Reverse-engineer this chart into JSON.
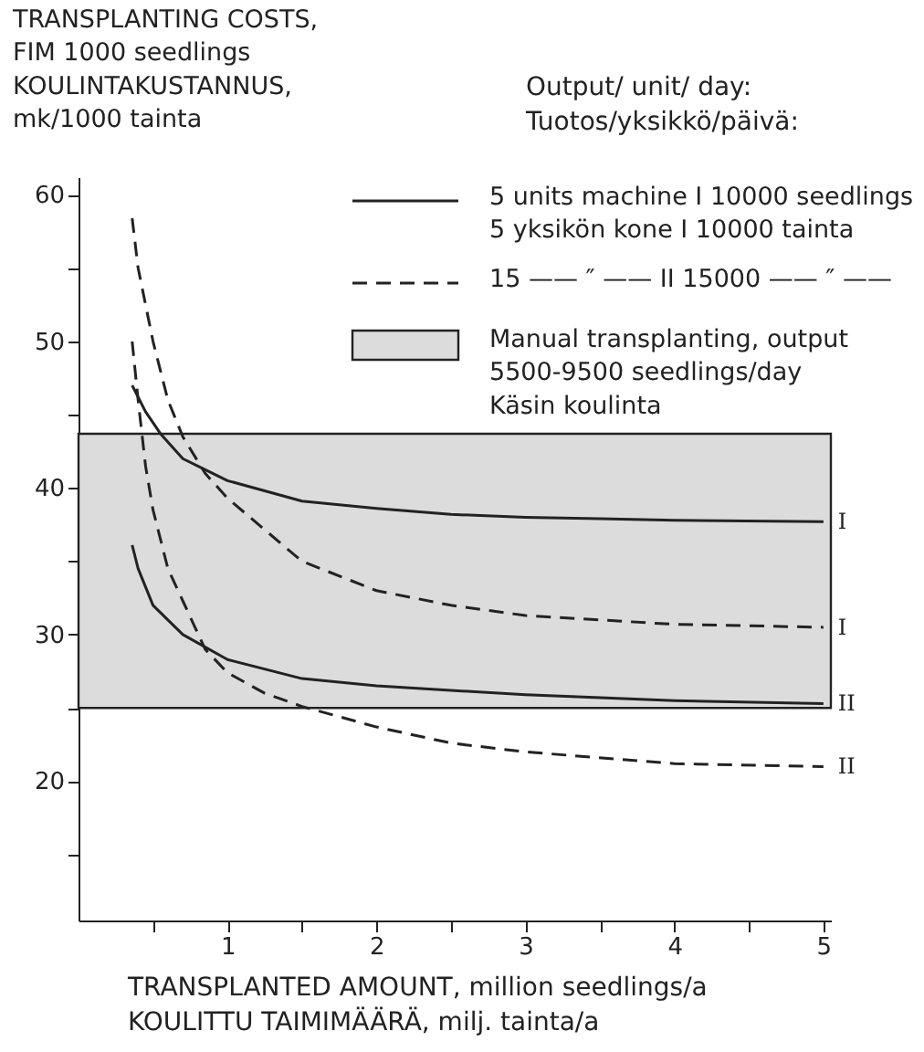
{
  "chart_data": {
    "type": "line",
    "ylabel": "TRANSPLANTING COSTS,\nFIM 1000 seedlings\nKOULINTAKUSTANNUS,\nmk/1000 tainta",
    "xlabel": "TRANSPLANTED AMOUNT, million seedlings/a\nKOULITTU TAIMIMÄÄRÄ, milj. tainta/a",
    "legend_title": "Output/ unit/ day:\nTuotos/yksikkö/päivä:",
    "legend": "top right",
    "annotations": [
      "5 units machine I 10000 seedlings\n5 yksikön kone I 10000 tainta",
      "15 —— ″ —— II 15000 —— ″ ——"
    ],
    "xlim": [
      0,
      5.05
    ],
    "ylim": [
      10.5,
      61.2
    ],
    "xticks": [
      {
        "value": 0.5,
        "label": null
      },
      1,
      {
        "value": 1.5,
        "label": null
      },
      2,
      {
        "value": 2.5,
        "label": null
      },
      3,
      {
        "value": 3.5,
        "label": null
      },
      4,
      {
        "value": 4.5,
        "label": null
      },
      5
    ],
    "yticks": [
      {
        "value": 15,
        "label": null
      },
      20,
      {
        "value": 25,
        "label": null
      },
      30,
      {
        "value": 35,
        "label": null
      },
      40,
      {
        "value": 45,
        "label": null
      },
      50,
      {
        "value": 55,
        "label": null
      },
      60
    ],
    "bands": [
      {
        "axis": "y",
        "from": 25,
        "to": 43.7,
        "color": "#dcdcdc",
        "label": "Manual transplanting, output\n5500-9500 seedlings/day\nKäsin koulinta"
      }
    ],
    "series": [
      {
        "name": "I",
        "color": "#222222",
        "line_style": "solid",
        "x": [
          0.36,
          0.45,
          0.55,
          0.7,
          1,
          1.5,
          2,
          2.5,
          3,
          3.5,
          4,
          5
        ],
        "values": [
          47,
          45.2,
          43.7,
          42,
          40.5,
          39.1,
          38.6,
          38.2,
          38,
          37.9,
          37.8,
          37.7
        ]
      },
      {
        "name": "II",
        "color": "#222222",
        "line_style": "solid",
        "x": [
          0.36,
          0.4,
          0.5,
          0.7,
          1,
          1.5,
          2,
          2.5,
          3,
          4,
          5
        ],
        "values": [
          36.1,
          34.5,
          32,
          30,
          28.3,
          27,
          26.5,
          26.2,
          25.9,
          25.5,
          25.3
        ]
      },
      {
        "name": "I",
        "color": "#222222",
        "line_style": "dashed",
        "x": [
          0.36,
          0.4,
          0.5,
          0.6,
          0.7,
          0.85,
          1,
          1.5,
          2,
          2.5,
          3,
          4,
          5
        ],
        "values": [
          58.4,
          55,
          50,
          46,
          43.5,
          41,
          39.3,
          35,
          33,
          32,
          31.3,
          30.7,
          30.5
        ]
      },
      {
        "name": "II",
        "color": "#222222",
        "line_style": "dashed",
        "x": [
          0.36,
          0.4,
          0.45,
          0.5,
          0.6,
          0.7,
          0.85,
          1,
          1.25,
          1.5,
          2,
          2.5,
          3,
          4,
          5
        ],
        "values": [
          50,
          46,
          41.5,
          38.5,
          34.5,
          32.3,
          29,
          27.4,
          26,
          25.1,
          23.7,
          22.6,
          22,
          21.2,
          21
        ]
      }
    ]
  }
}
